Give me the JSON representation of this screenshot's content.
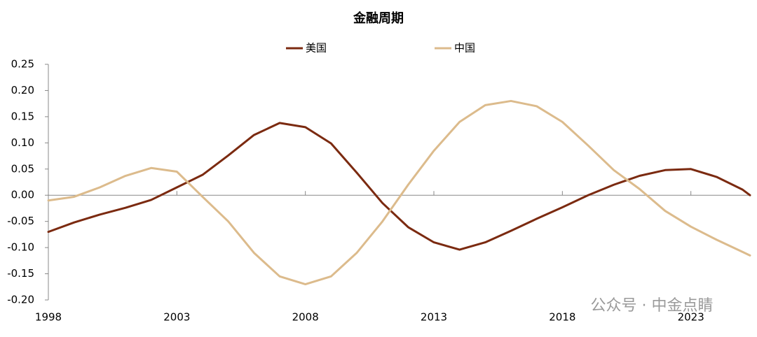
{
  "chart_data": {
    "type": "line",
    "title": "金融周期",
    "x": [
      1998,
      1999,
      2000,
      2001,
      2002,
      2003,
      2004,
      2005,
      2006,
      2007,
      2008,
      2009,
      2010,
      2011,
      2012,
      2013,
      2014,
      2015,
      2016,
      2017,
      2018,
      2019,
      2020,
      2021,
      2022,
      2023,
      2024,
      2025,
      2025.3
    ],
    "series": [
      {
        "name": "美国",
        "color": "#7b2a10",
        "values": [
          -0.07,
          -0.052,
          -0.037,
          -0.024,
          -0.009,
          0.015,
          0.039,
          0.076,
          0.115,
          0.138,
          0.13,
          0.099,
          0.043,
          -0.015,
          -0.061,
          -0.09,
          -0.104,
          -0.09,
          -0.068,
          -0.045,
          -0.023,
          0.0,
          0.02,
          0.037,
          0.048,
          0.05,
          0.035,
          0.011,
          0.0
        ]
      },
      {
        "name": "中国",
        "color": "#dcbb8c",
        "values": [
          -0.01,
          -0.003,
          0.015,
          0.037,
          0.052,
          0.045,
          -0.003,
          -0.05,
          -0.11,
          -0.155,
          -0.17,
          -0.155,
          -0.11,
          -0.05,
          0.02,
          0.085,
          0.14,
          0.172,
          0.18,
          0.17,
          0.14,
          0.095,
          0.048,
          0.012,
          -0.03,
          -0.06,
          -0.085,
          -0.108,
          -0.115
        ]
      }
    ],
    "xlim": [
      1998,
      2025.3
    ],
    "xticks": [
      1998,
      2003,
      2008,
      2013,
      2018,
      2023
    ],
    "ylim": [
      -0.2,
      0.25
    ],
    "yticks": [
      0.25,
      {
        "value": 0.2,
        "label": "0.20"
      },
      0.15,
      {
        "value": 0.1,
        "label": "0.10"
      },
      0.05,
      {
        "value": 0,
        "label": "0.00"
      },
      -0.05,
      {
        "value": -0.1,
        "label": "-0.10"
      },
      -0.15,
      {
        "value": -0.2,
        "label": "-0.20"
      }
    ],
    "watermark": "公众号 · 中金点睛"
  }
}
